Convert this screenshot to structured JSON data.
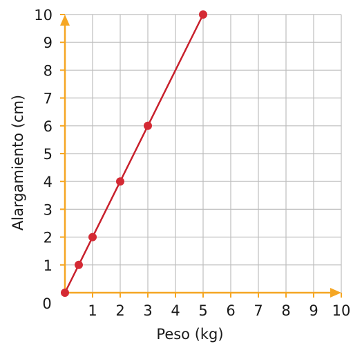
{
  "chart_data": {
    "type": "line",
    "title": "",
    "xlabel": "Peso (kg)",
    "ylabel": "Alargamiento (cm)",
    "origin_label": "0",
    "xlim": [
      0,
      10
    ],
    "ylim": [
      0,
      10
    ],
    "grid": true,
    "x_ticks": [
      "1",
      "2",
      "3",
      "4",
      "5",
      "6",
      "7",
      "8",
      "9",
      "10"
    ],
    "y_ticks": [
      "1",
      "2",
      "3",
      "4",
      "5",
      "6",
      "7",
      "8",
      "9",
      "10"
    ],
    "series": [
      {
        "x": [
          0,
          0.5,
          1,
          2,
          3,
          5
        ],
        "y": [
          0,
          1,
          2,
          4,
          6,
          10
        ]
      }
    ],
    "colors": {
      "axis": "#f5a623",
      "line": "#c8202c",
      "point": "#d42a34",
      "grid": "#bdbdbd"
    }
  }
}
